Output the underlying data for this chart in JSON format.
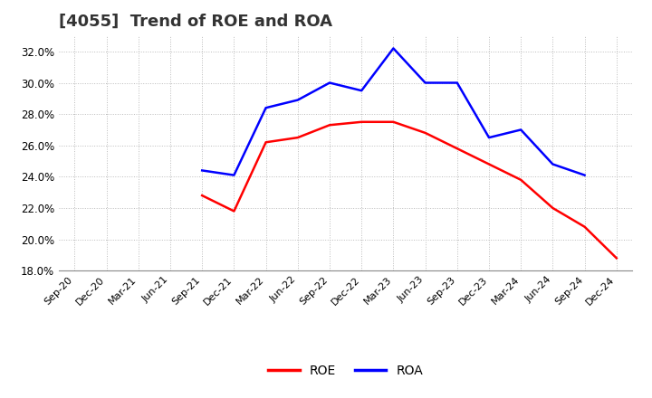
{
  "title": "[4055]  Trend of ROE and ROA",
  "title_fontsize": 13,
  "background_color": "#ffffff",
  "plot_bg_color": "#ffffff",
  "grid_color": "#bbbbbb",
  "roe_color": "#ff0000",
  "roa_color": "#0000ff",
  "roe_label": "ROE",
  "roa_label": "ROA",
  "dates": [
    "Sep-20",
    "Dec-20",
    "Mar-21",
    "Jun-21",
    "Sep-21",
    "Dec-21",
    "Mar-22",
    "Jun-22",
    "Sep-22",
    "Dec-22",
    "Mar-23",
    "Jun-23",
    "Sep-23",
    "Dec-23",
    "Mar-24",
    "Jun-24",
    "Sep-24",
    "Dec-24"
  ],
  "roe": [
    null,
    null,
    null,
    null,
    0.228,
    0.218,
    0.262,
    0.265,
    0.273,
    0.275,
    0.275,
    0.268,
    0.258,
    0.248,
    0.238,
    0.22,
    0.208,
    0.188
  ],
  "roa": [
    null,
    null,
    null,
    null,
    0.244,
    0.241,
    0.284,
    0.289,
    0.3,
    0.295,
    0.322,
    0.3,
    0.3,
    0.265,
    0.27,
    0.248,
    0.241,
    null
  ],
  "ylim": [
    0.18,
    0.33
  ],
  "yticks": [
    0.18,
    0.2,
    0.22,
    0.24,
    0.26,
    0.28,
    0.3,
    0.32
  ],
  "line_width": 1.8,
  "legend_fontsize": 10,
  "tick_fontsize": 8,
  "ytick_fontsize": 8.5
}
